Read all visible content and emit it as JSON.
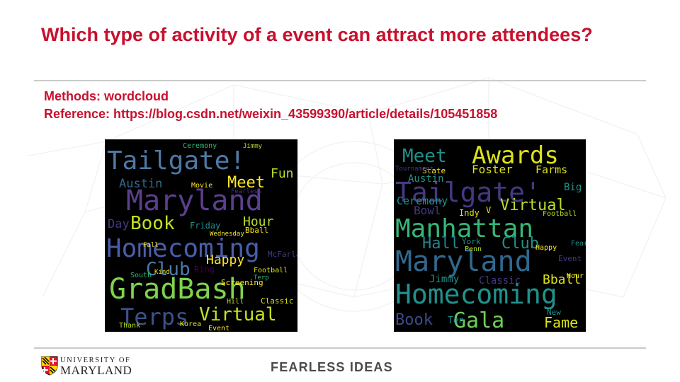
{
  "slide": {
    "title": "Which type of activity of a event can attract more attendees?",
    "methods_line": "Methods: wordcloud",
    "reference_line": "Reference: https://blog.csdn.net/weixin_43599390/article/details/105451858",
    "footer_tagline": "FEARLESS IDEAS",
    "logo_top": "UNIVERSITY OF",
    "logo_bottom": "MARYLAND"
  },
  "colors": {
    "title_red": "#c8102e",
    "rule_gray": "#c9cbc9",
    "cloud_background": "#000000"
  },
  "wordclouds": [
    {
      "words": [
        "Tailgate!",
        "Maryland",
        "Homecoming",
        "GradBash",
        "Terps",
        "Virtual",
        "Book",
        "Meet",
        "Club",
        "Happy",
        "Hour",
        "Fun",
        "Austin",
        "Day",
        "Friday",
        "Movie",
        "Ceremony",
        "Jimmy",
        "Fearless",
        "McFarland",
        "Screening",
        "Ring",
        "Football",
        "Classic",
        "Thank",
        "Korea",
        "Event",
        "South",
        "Wednesday",
        "Bball",
        "Hill",
        "Kind",
        "Terp",
        "Fall"
      ]
    },
    {
      "words": [
        "Awards",
        "Meet",
        "Tailgate'",
        "Manhattan",
        "Maryland",
        "Homecoming",
        "Gala",
        "Book",
        "Club",
        "Hall",
        "Virtual",
        "Foster",
        "Farms",
        "Bowl",
        "Indy",
        "Ceremony",
        "Ten",
        "Fame",
        "Bball",
        "Classic",
        "Jimmy",
        "Austin",
        "State",
        "Big",
        "Football",
        "York",
        "Penn",
        "Happy",
        "Fearless",
        "Event",
        "Hour",
        "Tournament",
        "New",
        "V"
      ]
    }
  ]
}
